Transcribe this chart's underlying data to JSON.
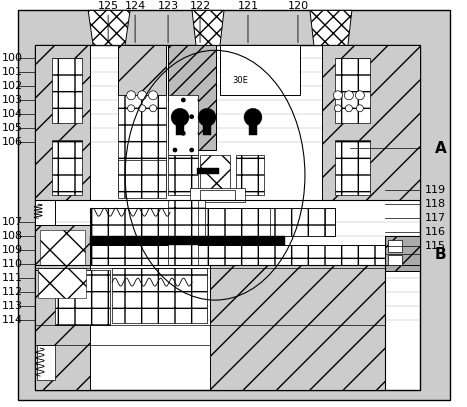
{
  "bg_color": "#ffffff",
  "line_color": "#000000",
  "labels_left": [
    [
      "100",
      58
    ],
    [
      "101",
      72
    ],
    [
      "102",
      86
    ],
    [
      "103",
      100
    ],
    [
      "104",
      114
    ],
    [
      "105",
      128
    ],
    [
      "106",
      142
    ],
    [
      "107",
      222
    ],
    [
      "108",
      236
    ],
    [
      "109",
      250
    ],
    [
      "110",
      264
    ],
    [
      "111",
      278
    ],
    [
      "112",
      292
    ],
    [
      "113",
      306
    ],
    [
      "114",
      320
    ]
  ],
  "labels_right": [
    [
      "119",
      190
    ],
    [
      "118",
      204
    ],
    [
      "117",
      218
    ],
    [
      "116",
      232
    ],
    [
      "115",
      246
    ]
  ],
  "labels_top": [
    [
      "125",
      108
    ],
    [
      "124",
      135
    ],
    [
      "123",
      168
    ],
    [
      "122",
      200
    ],
    [
      "121",
      248
    ],
    [
      "120",
      298
    ]
  ],
  "label_A": [
    "A",
    435,
    148
  ],
  "label_B": [
    "B",
    435,
    254
  ]
}
